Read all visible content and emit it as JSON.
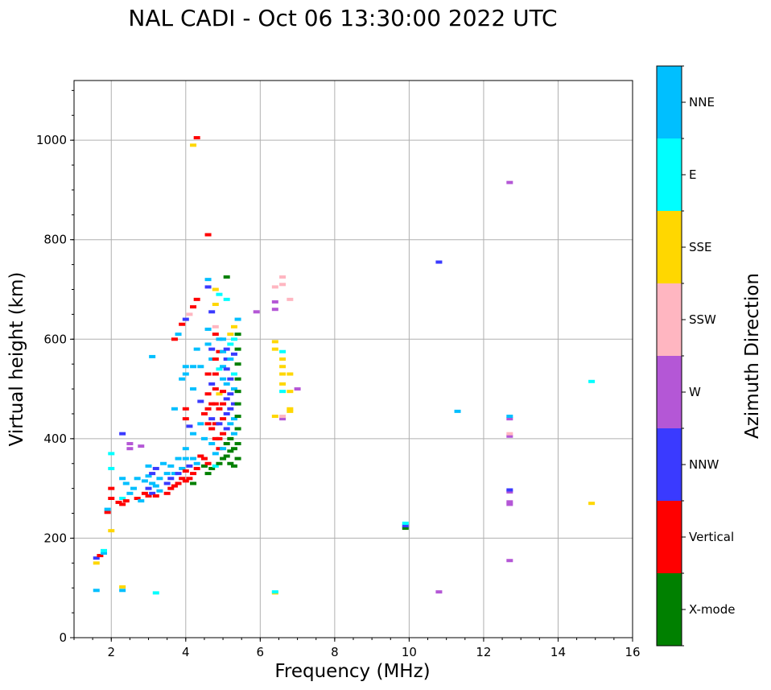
{
  "chart_data": {
    "type": "scatter",
    "title": "NAL CADI - Oct 06 13:30:00 2022 UTC",
    "xlabel": "Frequency (MHz)",
    "ylabel": "Virtual height (km)",
    "xlim": [
      1,
      16
    ],
    "ylim": [
      0,
      1120
    ],
    "xticks": [
      2,
      4,
      6,
      8,
      10,
      12,
      14,
      16
    ],
    "yticks": [
      0,
      200,
      400,
      600,
      800,
      1000
    ],
    "grid": true,
    "colorbar": {
      "label": "Azimuth Direction",
      "categories": [
        {
          "name": "X-mode",
          "color": "#008000"
        },
        {
          "name": "Vertical",
          "color": "#ff0000"
        },
        {
          "name": "NNW",
          "color": "#3a3aff"
        },
        {
          "name": "W",
          "color": "#b457d6"
        },
        {
          "name": "SSW",
          "color": "#ffb6c1"
        },
        {
          "name": "SSE",
          "color": "#ffd700"
        },
        {
          "name": "E",
          "color": "#00ffff"
        },
        {
          "name": "NNE",
          "color": "#00bfff"
        }
      ]
    },
    "points": [
      [
        1.6,
        95,
        "NNE"
      ],
      [
        1.6,
        150,
        "SSE"
      ],
      [
        1.6,
        160,
        "NNW"
      ],
      [
        1.7,
        165,
        "Vertical"
      ],
      [
        1.8,
        170,
        "NNE"
      ],
      [
        1.8,
        175,
        "E"
      ],
      [
        1.9,
        252,
        "Vertical"
      ],
      [
        1.9,
        258,
        "NNE"
      ],
      [
        2.0,
        215,
        "SSE"
      ],
      [
        2.0,
        280,
        "Vertical"
      ],
      [
        2.0,
        300,
        "Vertical"
      ],
      [
        2.0,
        340,
        "E"
      ],
      [
        2.0,
        370,
        "E"
      ],
      [
        2.2,
        272,
        "Vertical"
      ],
      [
        2.3,
        268,
        "Vertical"
      ],
      [
        2.3,
        280,
        "E"
      ],
      [
        2.3,
        320,
        "NNE"
      ],
      [
        2.3,
        410,
        "NNW"
      ],
      [
        2.3,
        95,
        "NNE"
      ],
      [
        2.3,
        102,
        "SSE"
      ],
      [
        2.4,
        275,
        "Vertical"
      ],
      [
        2.4,
        310,
        "NNE"
      ],
      [
        2.5,
        380,
        "W"
      ],
      [
        2.5,
        390,
        "W"
      ],
      [
        2.5,
        290,
        "NNE"
      ],
      [
        2.6,
        300,
        "NNE"
      ],
      [
        2.7,
        280,
        "Vertical"
      ],
      [
        2.7,
        320,
        "NNE"
      ],
      [
        2.8,
        385,
        "W"
      ],
      [
        2.8,
        275,
        "NNE"
      ],
      [
        2.9,
        290,
        "Vertical"
      ],
      [
        2.9,
        315,
        "NNE"
      ],
      [
        3.0,
        285,
        "Vertical"
      ],
      [
        3.0,
        300,
        "NNW"
      ],
      [
        3.0,
        325,
        "NNE"
      ],
      [
        3.0,
        345,
        "NNE"
      ],
      [
        3.1,
        290,
        "NNW"
      ],
      [
        3.1,
        310,
        "NNE"
      ],
      [
        3.1,
        330,
        "NNW"
      ],
      [
        3.1,
        565,
        "NNE"
      ],
      [
        3.2,
        285,
        "Vertical"
      ],
      [
        3.2,
        305,
        "NNE"
      ],
      [
        3.2,
        340,
        "NNW"
      ],
      [
        3.2,
        90,
        "E"
      ],
      [
        3.3,
        295,
        "NNE"
      ],
      [
        3.3,
        320,
        "NNE"
      ],
      [
        3.4,
        350,
        "NNE"
      ],
      [
        3.5,
        290,
        "Vertical"
      ],
      [
        3.5,
        310,
        "NNW"
      ],
      [
        3.5,
        330,
        "NNE"
      ],
      [
        3.6,
        300,
        "Vertical"
      ],
      [
        3.6,
        320,
        "NNW"
      ],
      [
        3.6,
        345,
        "NNE"
      ],
      [
        3.7,
        305,
        "Vertical"
      ],
      [
        3.7,
        330,
        "NNE"
      ],
      [
        3.7,
        460,
        "NNE"
      ],
      [
        3.7,
        600,
        "Vertical"
      ],
      [
        3.8,
        310,
        "Vertical"
      ],
      [
        3.8,
        330,
        "NNW"
      ],
      [
        3.8,
        360,
        "NNE"
      ],
      [
        3.8,
        610,
        "NNE"
      ],
      [
        3.9,
        320,
        "Vertical"
      ],
      [
        3.9,
        340,
        "NNE"
      ],
      [
        3.9,
        520,
        "NNE"
      ],
      [
        3.9,
        630,
        "Vertical"
      ],
      [
        4.0,
        315,
        "Vertical"
      ],
      [
        4.0,
        335,
        "Vertical"
      ],
      [
        4.0,
        360,
        "NNE"
      ],
      [
        4.0,
        380,
        "NNE"
      ],
      [
        4.0,
        440,
        "Vertical"
      ],
      [
        4.0,
        460,
        "Vertical"
      ],
      [
        4.0,
        530,
        "NNE"
      ],
      [
        4.0,
        545,
        "NNE"
      ],
      [
        4.0,
        640,
        "NNW"
      ],
      [
        4.1,
        320,
        "Vertical"
      ],
      [
        4.1,
        345,
        "NNW"
      ],
      [
        4.1,
        425,
        "NNW"
      ],
      [
        4.1,
        650,
        "SSW"
      ],
      [
        4.2,
        310,
        "X-mode"
      ],
      [
        4.2,
        330,
        "Vertical"
      ],
      [
        4.2,
        360,
        "NNE"
      ],
      [
        4.2,
        410,
        "NNE"
      ],
      [
        4.2,
        500,
        "NNE"
      ],
      [
        4.2,
        545,
        "NNE"
      ],
      [
        4.2,
        665,
        "Vertical"
      ],
      [
        4.2,
        990,
        "SSE"
      ],
      [
        4.3,
        340,
        "Vertical"
      ],
      [
        4.3,
        350,
        "NNE"
      ],
      [
        4.3,
        580,
        "NNE"
      ],
      [
        4.3,
        680,
        "Vertical"
      ],
      [
        4.3,
        1005,
        "Vertical"
      ],
      [
        4.4,
        365,
        "Vertical"
      ],
      [
        4.4,
        430,
        "NNE"
      ],
      [
        4.4,
        475,
        "NNW"
      ],
      [
        4.4,
        545,
        "NNE"
      ],
      [
        4.5,
        345,
        "X-mode"
      ],
      [
        4.5,
        360,
        "Vertical"
      ],
      [
        4.5,
        400,
        "NNE"
      ],
      [
        4.5,
        450,
        "Vertical"
      ],
      [
        4.6,
        330,
        "X-mode"
      ],
      [
        4.6,
        350,
        "Vertical"
      ],
      [
        4.6,
        430,
        "Vertical"
      ],
      [
        4.6,
        460,
        "Vertical"
      ],
      [
        4.6,
        490,
        "Vertical"
      ],
      [
        4.6,
        530,
        "Vertical"
      ],
      [
        4.6,
        590,
        "NNE"
      ],
      [
        4.6,
        620,
        "NNE"
      ],
      [
        4.6,
        705,
        "NNW"
      ],
      [
        4.6,
        720,
        "NNE"
      ],
      [
        4.6,
        810,
        "Vertical"
      ],
      [
        4.7,
        340,
        "X-mode"
      ],
      [
        4.7,
        390,
        "NNE"
      ],
      [
        4.7,
        420,
        "Vertical"
      ],
      [
        4.7,
        440,
        "NNW"
      ],
      [
        4.7,
        470,
        "Vertical"
      ],
      [
        4.7,
        510,
        "NNW"
      ],
      [
        4.7,
        560,
        "NNE"
      ],
      [
        4.7,
        580,
        "NNW"
      ],
      [
        4.7,
        655,
        "NNW"
      ],
      [
        4.8,
        345,
        "E"
      ],
      [
        4.8,
        370,
        "NNE"
      ],
      [
        4.8,
        400,
        "Vertical"
      ],
      [
        4.8,
        430,
        "Vertical"
      ],
      [
        4.8,
        470,
        "Vertical"
      ],
      [
        4.8,
        500,
        "Vertical"
      ],
      [
        4.8,
        530,
        "Vertical"
      ],
      [
        4.8,
        560,
        "Vertical"
      ],
      [
        4.8,
        610,
        "Vertical"
      ],
      [
        4.8,
        625,
        "SSW"
      ],
      [
        4.8,
        670,
        "SSE"
      ],
      [
        4.8,
        700,
        "SSE"
      ],
      [
        4.9,
        350,
        "X-mode"
      ],
      [
        4.9,
        380,
        "Vertical"
      ],
      [
        4.9,
        400,
        "Vertical"
      ],
      [
        4.9,
        430,
        "NNW"
      ],
      [
        4.9,
        460,
        "Vertical"
      ],
      [
        4.9,
        490,
        "SSE"
      ],
      [
        4.9,
        540,
        "E"
      ],
      [
        4.9,
        575,
        "Vertical"
      ],
      [
        4.9,
        600,
        "NNE"
      ],
      [
        4.9,
        690,
        "E"
      ],
      [
        5.0,
        360,
        "X-mode"
      ],
      [
        5.0,
        380,
        "NNE"
      ],
      [
        5.0,
        410,
        "Vertical"
      ],
      [
        5.0,
        440,
        "Vertical"
      ],
      [
        5.0,
        470,
        "Vertical"
      ],
      [
        5.0,
        495,
        "Vertical"
      ],
      [
        5.0,
        520,
        "NNE"
      ],
      [
        5.0,
        545,
        "NNE"
      ],
      [
        5.0,
        575,
        "NNE"
      ],
      [
        5.0,
        600,
        "NNE"
      ],
      [
        5.1,
        365,
        "X-mode"
      ],
      [
        5.1,
        390,
        "X-mode"
      ],
      [
        5.1,
        420,
        "NNW"
      ],
      [
        5.1,
        450,
        "NNW"
      ],
      [
        5.1,
        480,
        "NNW"
      ],
      [
        5.1,
        510,
        "NNE"
      ],
      [
        5.1,
        540,
        "NNW"
      ],
      [
        5.1,
        560,
        "NNW"
      ],
      [
        5.1,
        580,
        "NNW"
      ],
      [
        5.1,
        680,
        "E"
      ],
      [
        5.1,
        725,
        "X-mode"
      ],
      [
        5.2,
        350,
        "X-mode"
      ],
      [
        5.2,
        375,
        "X-mode"
      ],
      [
        5.2,
        400,
        "X-mode"
      ],
      [
        5.2,
        430,
        "NNE"
      ],
      [
        5.2,
        460,
        "NNW"
      ],
      [
        5.2,
        490,
        "NNW"
      ],
      [
        5.2,
        520,
        "NNW"
      ],
      [
        5.2,
        560,
        "NNE"
      ],
      [
        5.2,
        590,
        "E"
      ],
      [
        5.2,
        610,
        "SSE"
      ],
      [
        5.3,
        345,
        "X-mode"
      ],
      [
        5.3,
        380,
        "X-mode"
      ],
      [
        5.3,
        410,
        "NNE"
      ],
      [
        5.3,
        440,
        "NNE"
      ],
      [
        5.3,
        470,
        "NNW"
      ],
      [
        5.3,
        500,
        "NNE"
      ],
      [
        5.3,
        530,
        "E"
      ],
      [
        5.3,
        570,
        "NNW"
      ],
      [
        5.3,
        600,
        "E"
      ],
      [
        5.3,
        625,
        "SSE"
      ],
      [
        5.4,
        360,
        "X-mode"
      ],
      [
        5.4,
        390,
        "X-mode"
      ],
      [
        5.4,
        420,
        "X-mode"
      ],
      [
        5.4,
        445,
        "X-mode"
      ],
      [
        5.4,
        470,
        "X-mode"
      ],
      [
        5.4,
        495,
        "X-mode"
      ],
      [
        5.4,
        520,
        "X-mode"
      ],
      [
        5.4,
        550,
        "X-mode"
      ],
      [
        5.4,
        580,
        "X-mode"
      ],
      [
        5.4,
        610,
        "X-mode"
      ],
      [
        5.4,
        640,
        "NNE"
      ],
      [
        5.9,
        655,
        "W"
      ],
      [
        6.4,
        90,
        "SSE"
      ],
      [
        6.4,
        92,
        "E"
      ],
      [
        6.4,
        445,
        "SSE"
      ],
      [
        6.4,
        580,
        "SSE"
      ],
      [
        6.4,
        595,
        "SSE"
      ],
      [
        6.4,
        660,
        "W"
      ],
      [
        6.4,
        675,
        "W"
      ],
      [
        6.4,
        705,
        "SSW"
      ],
      [
        6.6,
        440,
        "W"
      ],
      [
        6.6,
        445,
        "SSW"
      ],
      [
        6.6,
        495,
        "E"
      ],
      [
        6.6,
        510,
        "SSE"
      ],
      [
        6.6,
        530,
        "SSE"
      ],
      [
        6.6,
        545,
        "SSE"
      ],
      [
        6.6,
        560,
        "SSE"
      ],
      [
        6.6,
        575,
        "E"
      ],
      [
        6.6,
        710,
        "SSW"
      ],
      [
        6.6,
        725,
        "SSW"
      ],
      [
        6.8,
        455,
        "SSE"
      ],
      [
        6.8,
        460,
        "SSE"
      ],
      [
        6.8,
        495,
        "SSE"
      ],
      [
        6.8,
        530,
        "SSE"
      ],
      [
        6.8,
        680,
        "SSW"
      ],
      [
        7.0,
        500,
        "W"
      ],
      [
        9.9,
        220,
        "X-mode"
      ],
      [
        9.9,
        225,
        "NNW"
      ],
      [
        9.9,
        230,
        "E"
      ],
      [
        10.8,
        92,
        "W"
      ],
      [
        10.8,
        755,
        "NNW"
      ],
      [
        11.3,
        455,
        "NNE"
      ],
      [
        12.7,
        155,
        "W"
      ],
      [
        12.7,
        268,
        "W"
      ],
      [
        12.7,
        273,
        "W"
      ],
      [
        12.7,
        293,
        "W"
      ],
      [
        12.7,
        297,
        "NNW"
      ],
      [
        12.7,
        405,
        "W"
      ],
      [
        12.7,
        410,
        "SSW"
      ],
      [
        12.7,
        440,
        "W"
      ],
      [
        12.7,
        445,
        "NNE"
      ],
      [
        12.7,
        915,
        "W"
      ],
      [
        14.9,
        270,
        "SSE"
      ],
      [
        14.9,
        515,
        "E"
      ]
    ]
  }
}
